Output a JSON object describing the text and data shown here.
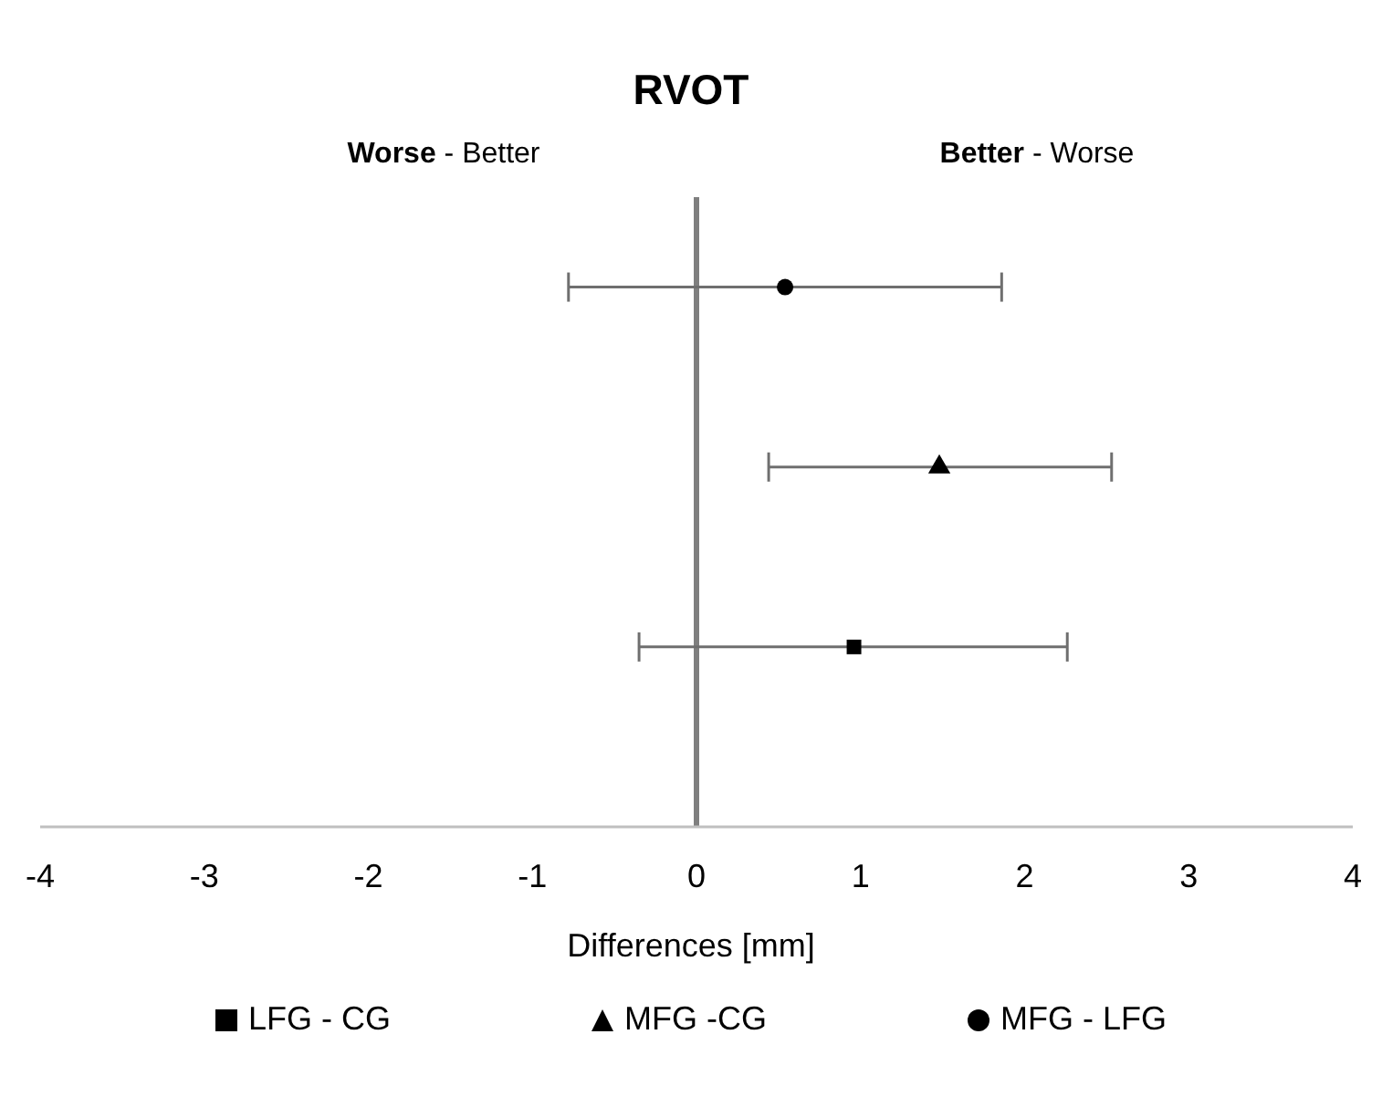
{
  "chart_data": {
    "type": "scatter",
    "title": "RVOT",
    "xlabel": "Differences [mm]",
    "orientation": "horizontal",
    "annotations": [
      "Worse - Better",
      "Better - Worse"
    ],
    "categories": [
      null,
      null,
      null
    ],
    "series": [
      {
        "name": "LFG - CG",
        "color": "#000000",
        "marker": "square",
        "values": [
          null,
          null,
          0.96
        ],
        "errors": [
          null,
          null,
          [
            -0.35,
            2.26
          ]
        ]
      },
      {
        "name": "MFG -CG",
        "color": "#000000",
        "marker": "triangle",
        "values": [
          null,
          1.48,
          null
        ],
        "errors": [
          null,
          [
            0.44,
            2.53
          ],
          null
        ]
      },
      {
        "name": "MFG - LFG",
        "color": "#000000",
        "marker": "circle",
        "values": [
          0.54,
          null,
          null
        ],
        "errors": [
          [
            -0.78,
            1.86
          ],
          null,
          null
        ]
      }
    ],
    "xlim": [
      -4,
      4
    ],
    "xticks": [
      -4,
      -3,
      -2,
      -1,
      0,
      1,
      2,
      3,
      4
    ],
    "ref_lines": [
      {
        "axis": "x",
        "value": 0,
        "color": "#7f7f7f"
      }
    ],
    "grid": false,
    "legend": "bottom"
  }
}
